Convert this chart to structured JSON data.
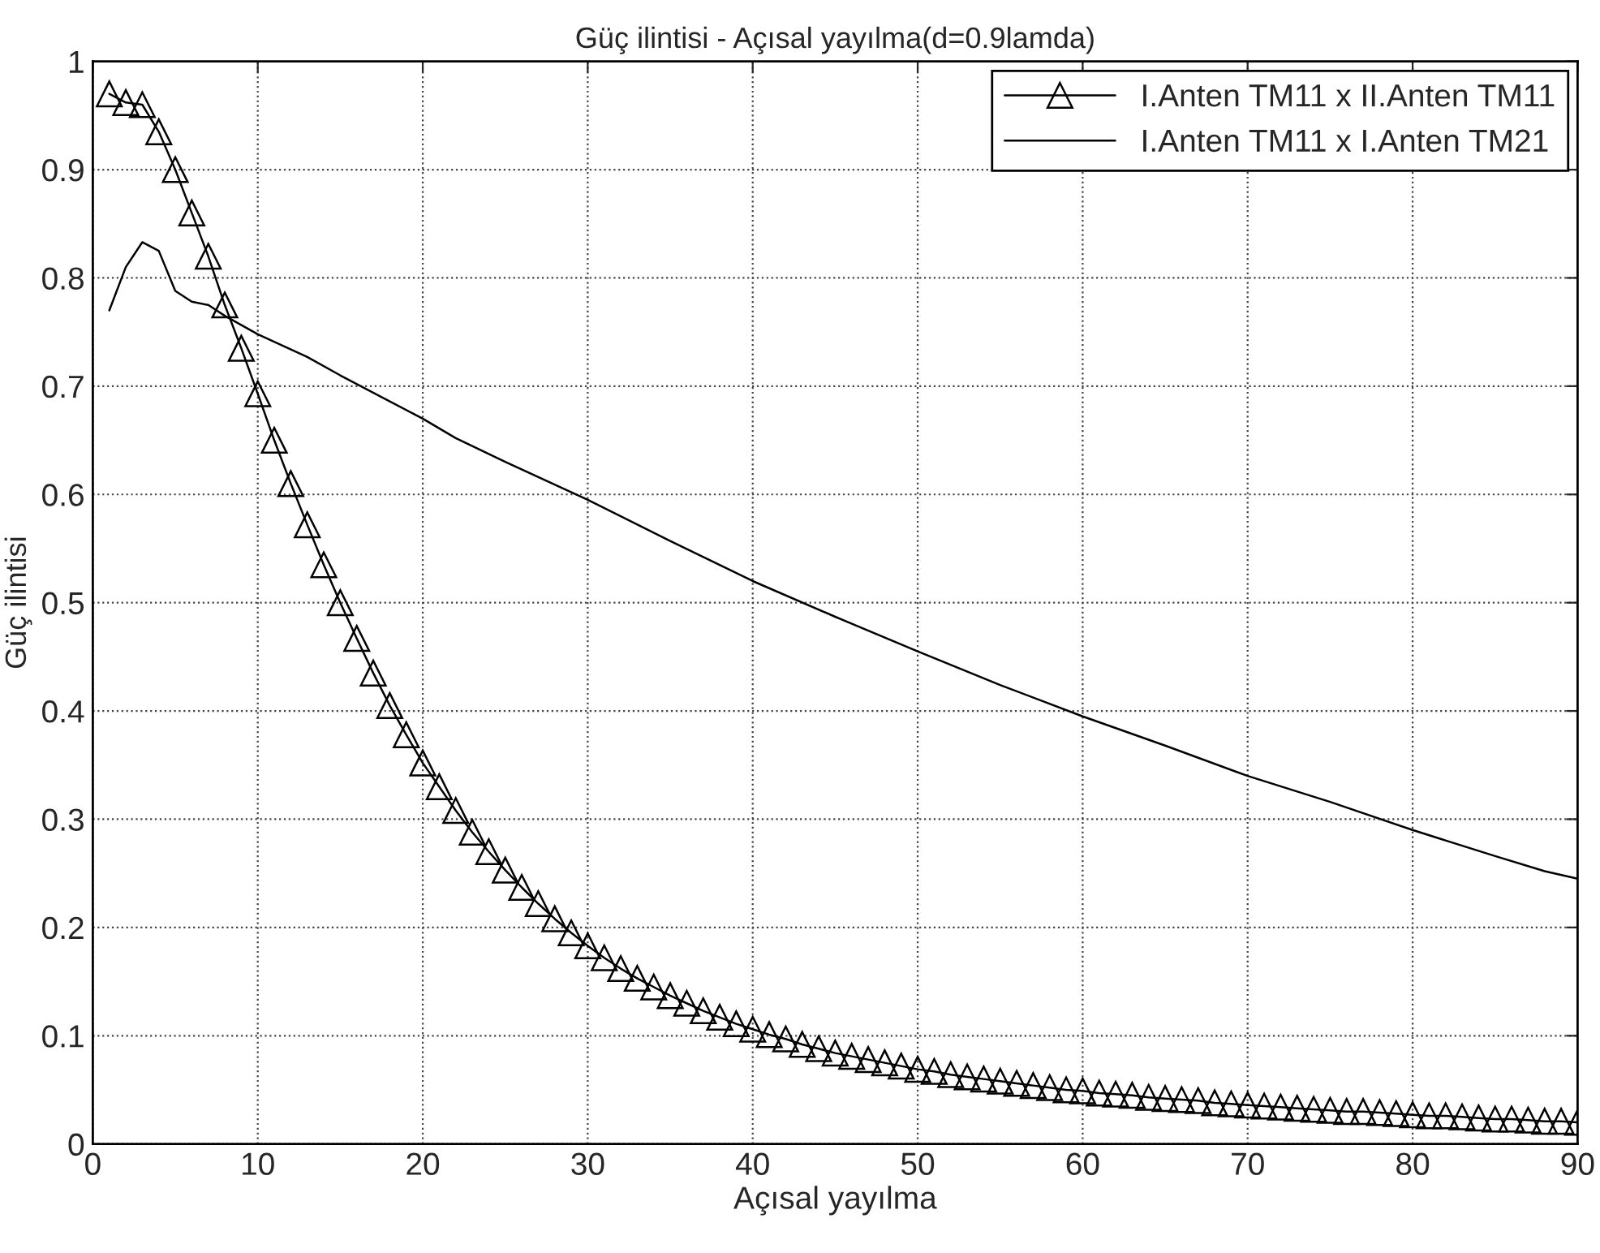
{
  "chart_data": {
    "type": "line",
    "title": "Güç ilintisi - Açısal yayılma(d=0.9lamda)",
    "xlabel": "Açısal yayılma",
    "ylabel": "Güç ilintisi",
    "xlim": [
      0,
      90
    ],
    "xticks": [
      0,
      10,
      20,
      30,
      40,
      50,
      60,
      70,
      80,
      90
    ],
    "ylim": [
      0,
      1
    ],
    "yticks": [
      0,
      0.1,
      0.2,
      0.3,
      0.4,
      0.5,
      0.6,
      0.7,
      0.8,
      0.9,
      1
    ],
    "grid": true,
    "legend": "top right",
    "line_style": "solid",
    "series": [
      {
        "name": "I.Anten TM11 x II.Anten TM11",
        "color": "#000000",
        "marker": "triangle",
        "x": [
          1,
          2,
          3,
          4,
          5,
          6,
          7,
          8,
          9,
          10,
          11,
          12,
          13,
          14,
          15,
          16,
          17,
          18,
          19,
          20,
          21,
          22,
          23,
          24,
          25,
          26,
          27,
          28,
          29,
          30,
          31,
          32,
          33,
          34,
          35,
          36,
          37,
          38,
          39,
          40,
          41,
          42,
          43,
          44,
          45,
          46,
          47,
          48,
          49,
          50,
          51,
          52,
          53,
          54,
          55,
          56,
          57,
          58,
          59,
          60,
          61,
          62,
          63,
          64,
          65,
          66,
          67,
          68,
          69,
          70,
          71,
          72,
          73,
          74,
          75,
          76,
          77,
          78,
          79,
          80,
          81,
          82,
          83,
          84,
          85,
          86,
          87,
          88,
          89,
          90
        ],
        "values": [
          0.97,
          0.962,
          0.96,
          0.935,
          0.9,
          0.86,
          0.82,
          0.775,
          0.735,
          0.693,
          0.65,
          0.61,
          0.572,
          0.535,
          0.5,
          0.467,
          0.435,
          0.405,
          0.378,
          0.352,
          0.33,
          0.308,
          0.288,
          0.27,
          0.253,
          0.237,
          0.222,
          0.208,
          0.195,
          0.183,
          0.172,
          0.162,
          0.153,
          0.145,
          0.137,
          0.13,
          0.123,
          0.117,
          0.111,
          0.106,
          0.101,
          0.097,
          0.092,
          0.088,
          0.084,
          0.081,
          0.078,
          0.075,
          0.072,
          0.069,
          0.067,
          0.064,
          0.062,
          0.06,
          0.058,
          0.056,
          0.054,
          0.052,
          0.05,
          0.049,
          0.047,
          0.046,
          0.045,
          0.043,
          0.042,
          0.041,
          0.04,
          0.038,
          0.037,
          0.036,
          0.035,
          0.034,
          0.033,
          0.032,
          0.031,
          0.03,
          0.03,
          0.029,
          0.028,
          0.027,
          0.026,
          0.026,
          0.025,
          0.024,
          0.023,
          0.023,
          0.022,
          0.021,
          0.021,
          0.02
        ]
      },
      {
        "name": "I.Anten TM11 x I.Anten TM21",
        "color": "#000000",
        "marker": "none",
        "x": [
          1,
          2,
          3,
          4,
          5,
          6,
          7,
          8,
          10,
          13,
          15,
          20,
          22,
          25,
          30,
          35,
          40,
          45,
          50,
          55,
          60,
          65,
          70,
          75,
          80,
          85,
          88,
          90
        ],
        "values": [
          0.77,
          0.81,
          0.833,
          0.825,
          0.788,
          0.778,
          0.775,
          0.765,
          0.748,
          0.727,
          0.71,
          0.67,
          0.652,
          0.63,
          0.595,
          0.557,
          0.52,
          0.487,
          0.455,
          0.424,
          0.395,
          0.368,
          0.34,
          0.316,
          0.29,
          0.266,
          0.252,
          0.245
        ]
      }
    ]
  }
}
